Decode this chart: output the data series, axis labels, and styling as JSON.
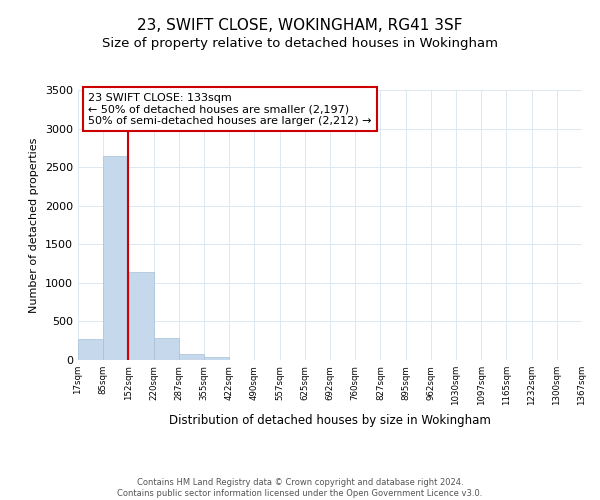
{
  "title": "23, SWIFT CLOSE, WOKINGHAM, RG41 3SF",
  "subtitle": "Size of property relative to detached houses in Wokingham",
  "bar_values": [
    270,
    2640,
    1140,
    280,
    80,
    40,
    0,
    0,
    0,
    0,
    0,
    0,
    0,
    0,
    0,
    0,
    0,
    0,
    0,
    0
  ],
  "x_labels": [
    "17sqm",
    "85sqm",
    "152sqm",
    "220sqm",
    "287sqm",
    "355sqm",
    "422sqm",
    "490sqm",
    "557sqm",
    "625sqm",
    "692sqm",
    "760sqm",
    "827sqm",
    "895sqm",
    "962sqm",
    "1030sqm",
    "1097sqm",
    "1165sqm",
    "1232sqm",
    "1300sqm",
    "1367sqm"
  ],
  "bar_color": "#c5d8ec",
  "bar_edge_color": "#a8c0d8",
  "vline_color": "#cc0000",
  "ylim": [
    0,
    3500
  ],
  "yticks": [
    0,
    500,
    1000,
    1500,
    2000,
    2500,
    3000,
    3500
  ],
  "ylabel": "Number of detached properties",
  "xlabel": "Distribution of detached houses by size in Wokingham",
  "annotation_title": "23 SWIFT CLOSE: 133sqm",
  "annotation_line1": "← 50% of detached houses are smaller (2,197)",
  "annotation_line2": "50% of semi-detached houses are larger (2,212) →",
  "annotation_box_color": "#ffffff",
  "annotation_box_edge": "#cc0000",
  "footnote1": "Contains HM Land Registry data © Crown copyright and database right 2024.",
  "footnote2": "Contains public sector information licensed under the Open Government Licence v3.0.",
  "grid_color": "#dce8f0",
  "background_color": "#ffffff",
  "title_fontsize": 11,
  "subtitle_fontsize": 9.5
}
